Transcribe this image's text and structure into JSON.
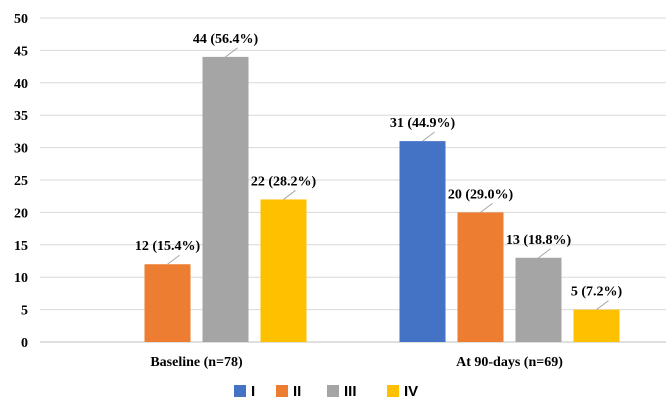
{
  "chart_data": {
    "type": "bar",
    "title": "",
    "xlabel": "",
    "ylabel": "",
    "ylim": [
      0,
      50
    ],
    "y_ticks": [
      0,
      5,
      10,
      15,
      20,
      25,
      30,
      35,
      40,
      45,
      50
    ],
    "grid": true,
    "legend_position": "bottom",
    "categories": [
      "Baseline (n=78)",
      "At 90-days (n=69)"
    ],
    "series": [
      {
        "name": "I",
        "color": "#4472c4",
        "values": [
          null,
          31
        ],
        "labels": [
          "",
          "31 (44.9%)"
        ]
      },
      {
        "name": "II",
        "color": "#ed7d31",
        "values": [
          12,
          20
        ],
        "labels": [
          "12 (15.4%)",
          "20 (29.0%)"
        ]
      },
      {
        "name": "III",
        "color": "#a5a5a5",
        "values": [
          44,
          13
        ],
        "labels": [
          "44 (56.4%)",
          "13 (18.8%)"
        ]
      },
      {
        "name": "IV",
        "color": "#ffc000",
        "values": [
          22,
          5
        ],
        "labels": [
          "22 (28.2%)",
          "5 (7.2%)"
        ]
      }
    ]
  }
}
